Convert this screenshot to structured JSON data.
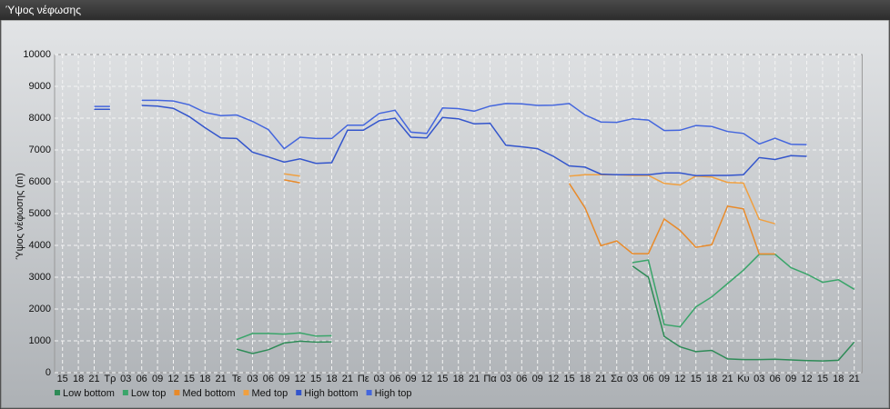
{
  "window_title": "Ύψος νέφωσης",
  "chart_data": {
    "type": "line",
    "ylabel": "Ύψος νέφωσης (m)",
    "categories": [
      "15",
      "18",
      "21",
      "Τρ",
      "03",
      "06",
      "09",
      "12",
      "15",
      "18",
      "21",
      "Τε",
      "03",
      "06",
      "09",
      "12",
      "15",
      "18",
      "21",
      "Πε",
      "03",
      "06",
      "09",
      "12",
      "15",
      "18",
      "21",
      "Πα",
      "03",
      "06",
      "09",
      "12",
      "15",
      "18",
      "21",
      "Σα",
      "03",
      "06",
      "09",
      "12",
      "15",
      "18",
      "21",
      "Κυ",
      "03",
      "06",
      "09",
      "12",
      "15",
      "18",
      "21"
    ],
    "ylim": [
      0,
      10000
    ],
    "yticks": [
      0,
      1000,
      2000,
      3000,
      4000,
      5000,
      6000,
      7000,
      8000,
      9000,
      10000
    ],
    "grid": true,
    "series": [
      {
        "name": "Low bottom",
        "color": "#2e8b57",
        "values": [
          null,
          null,
          null,
          null,
          null,
          null,
          null,
          null,
          null,
          null,
          null,
          740,
          600,
          720,
          930,
          990,
          960,
          970,
          null,
          null,
          null,
          null,
          null,
          null,
          null,
          null,
          null,
          null,
          null,
          null,
          null,
          null,
          null,
          null,
          null,
          null,
          3350,
          3000,
          1140,
          810,
          660,
          700,
          430,
          410,
          410,
          420,
          400,
          380,
          370,
          390,
          960
        ]
      },
      {
        "name": "Low top",
        "color": "#3aa56a",
        "values": [
          null,
          null,
          null,
          null,
          null,
          null,
          null,
          null,
          null,
          null,
          null,
          1040,
          1230,
          1230,
          1210,
          1250,
          1150,
          1160,
          null,
          null,
          null,
          null,
          null,
          null,
          null,
          null,
          null,
          null,
          null,
          null,
          null,
          null,
          null,
          null,
          null,
          null,
          3460,
          3540,
          1510,
          1440,
          2070,
          2380,
          2800,
          3220,
          3720,
          3720,
          3300,
          3100,
          2840,
          2920,
          2620
        ]
      },
      {
        "name": "Med bottom",
        "color": "#e88a2a",
        "values": [
          null,
          null,
          null,
          null,
          null,
          null,
          null,
          null,
          null,
          null,
          null,
          null,
          null,
          null,
          6060,
          5970,
          null,
          null,
          null,
          null,
          null,
          null,
          null,
          null,
          null,
          null,
          null,
          null,
          null,
          null,
          null,
          null,
          5950,
          5180,
          3990,
          4140,
          3740,
          3740,
          4830,
          4470,
          3940,
          4020,
          5230,
          5150,
          3730,
          3730,
          null,
          null,
          null,
          null,
          null
        ]
      },
      {
        "name": "Med top",
        "color": "#f0a040",
        "values": [
          null,
          null,
          null,
          null,
          null,
          null,
          null,
          null,
          null,
          null,
          null,
          null,
          null,
          null,
          6250,
          6180,
          null,
          null,
          null,
          null,
          null,
          null,
          null,
          null,
          null,
          null,
          null,
          null,
          null,
          null,
          null,
          null,
          6180,
          6220,
          6220,
          6220,
          6200,
          6200,
          5950,
          5900,
          6180,
          6150,
          5980,
          5960,
          4820,
          4680,
          null,
          null,
          null,
          null,
          null
        ]
      },
      {
        "name": "High bottom",
        "color": "#3355cc",
        "values": [
          null,
          null,
          8280,
          8280,
          null,
          8400,
          8380,
          8310,
          8050,
          7700,
          7380,
          7360,
          6930,
          6780,
          6620,
          6720,
          6580,
          6600,
          7620,
          7620,
          7920,
          8000,
          7400,
          7380,
          8020,
          7980,
          7820,
          7840,
          7150,
          7100,
          7040,
          6800,
          6500,
          6460,
          6240,
          6220,
          6220,
          6220,
          6280,
          6280,
          6190,
          6200,
          6200,
          6220,
          6760,
          6700,
          6820,
          6800,
          null,
          null,
          null
        ]
      },
      {
        "name": "High top",
        "color": "#4466dd",
        "values": [
          null,
          null,
          8370,
          8370,
          null,
          8560,
          8560,
          8540,
          8420,
          8180,
          8080,
          8100,
          7900,
          7640,
          7040,
          7400,
          7360,
          7360,
          7780,
          7780,
          8150,
          8250,
          7560,
          7520,
          8320,
          8300,
          8220,
          8380,
          8460,
          8450,
          8400,
          8410,
          8460,
          8100,
          7880,
          7870,
          7980,
          7940,
          7610,
          7620,
          7770,
          7740,
          7580,
          7520,
          7190,
          7370,
          7180,
          7170,
          null,
          null,
          null
        ]
      }
    ]
  }
}
